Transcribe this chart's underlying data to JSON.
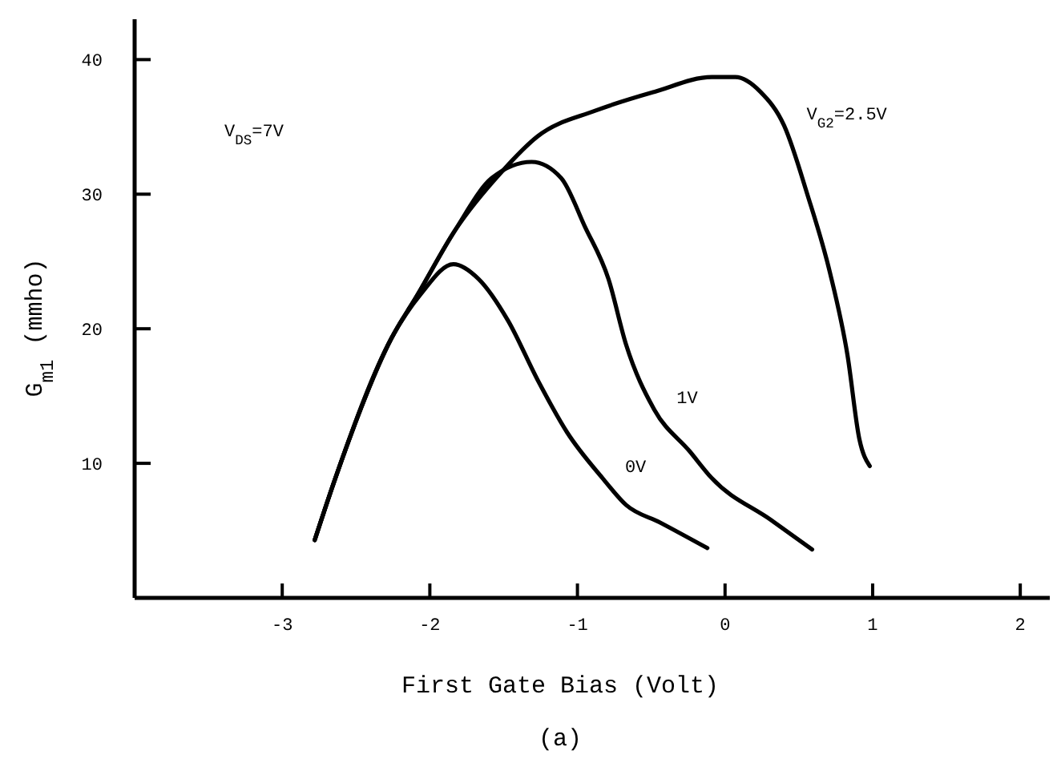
{
  "chart_data": {
    "type": "line",
    "xlabel": "First Gate Bias (Volt)",
    "ylabel": "G$_{m1}$ (mmho)",
    "xlim": [
      -4,
      2.2
    ],
    "ylim": [
      0,
      43
    ],
    "xticks": [
      -3,
      -2,
      -1,
      0,
      1,
      2
    ],
    "yticks": [
      10,
      20,
      30,
      40
    ],
    "grid": false,
    "legend": false,
    "marker": "none",
    "line_style": "solid",
    "series": [
      {
        "name": "V$_{G2}$=2.5V",
        "color": "#000000",
        "x": [
          -2.78,
          -2.64,
          -2.26,
          -2.09,
          -1.83,
          -1.51,
          -1.27,
          -0.88,
          -0.48,
          -0.09,
          0.07,
          0.24,
          0.4,
          0.56,
          0.71,
          0.83,
          0.91,
          0.98
        ],
        "values": [
          4.3,
          8.9,
          19.3,
          22.4,
          27.3,
          31.7,
          34.3,
          36.2,
          37.6,
          38.7,
          38.7,
          37.6,
          35.1,
          29.9,
          24.2,
          18,
          11.8,
          9.8
        ]
      },
      {
        "name": "1V",
        "color": "#000000",
        "x": [
          -2.78,
          -2.64,
          -2.26,
          -2.09,
          -1.83,
          -1.58,
          -1.31,
          -1.11,
          -0.95,
          -0.79,
          -0.67,
          -0.48,
          -0.24,
          -0.09,
          0.31,
          0.59
        ],
        "values": [
          4.3,
          8.9,
          19.3,
          22.4,
          27.3,
          31.2,
          32.4,
          31.2,
          27.6,
          23.7,
          18.8,
          14,
          10.9,
          8.9,
          5.8,
          3.6
        ]
      },
      {
        "name": "0V",
        "color": "#000000",
        "x": [
          -2.78,
          -2.64,
          -2.26,
          -2.06,
          -1.84,
          -1.67,
          -1.47,
          -1.27,
          -1.07,
          -0.83,
          -0.67,
          -0.44,
          -0.12
        ],
        "values": [
          4.3,
          8.9,
          19.3,
          22.6,
          24.8,
          23.7,
          20.6,
          16.2,
          12.3,
          8.9,
          6.9,
          5.6,
          3.7
        ]
      }
    ],
    "annotations": [
      "V$_{DS}$=7V",
      "(a)"
    ]
  }
}
